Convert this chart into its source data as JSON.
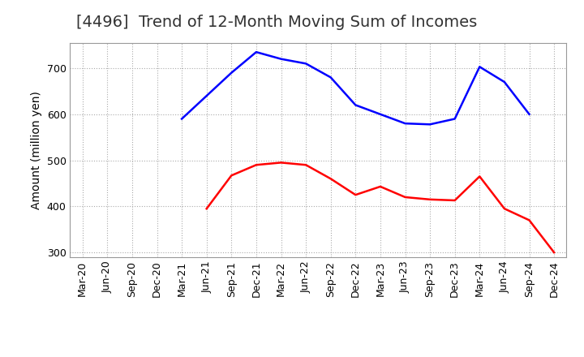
{
  "title": "[4496]  Trend of 12-Month Moving Sum of Incomes",
  "ylabel": "Amount (million yen)",
  "x_labels": [
    "Mar-20",
    "Jun-20",
    "Sep-20",
    "Dec-20",
    "Mar-21",
    "Jun-21",
    "Sep-21",
    "Dec-21",
    "Mar-22",
    "Jun-22",
    "Sep-22",
    "Dec-22",
    "Mar-23",
    "Jun-23",
    "Sep-23",
    "Dec-23",
    "Mar-24",
    "Jun-24",
    "Sep-24",
    "Dec-24"
  ],
  "ordinary_income": [
    null,
    null,
    null,
    null,
    590,
    640,
    690,
    735,
    720,
    710,
    680,
    620,
    600,
    580,
    578,
    590,
    703,
    670,
    600,
    null
  ],
  "net_income": [
    null,
    null,
    null,
    null,
    null,
    395,
    467,
    490,
    495,
    490,
    460,
    425,
    443,
    420,
    415,
    413,
    465,
    395,
    370,
    300
  ],
  "ordinary_color": "#0000ff",
  "net_color": "#ff0000",
  "ylim_min": 290,
  "ylim_max": 755,
  "yticks": [
    300,
    400,
    500,
    600,
    700
  ],
  "bg_color": "#ffffff",
  "grid_color": "#aaaaaa",
  "title_fontsize": 14,
  "title_color": "#333333",
  "axis_label_fontsize": 10,
  "tick_fontsize": 9
}
